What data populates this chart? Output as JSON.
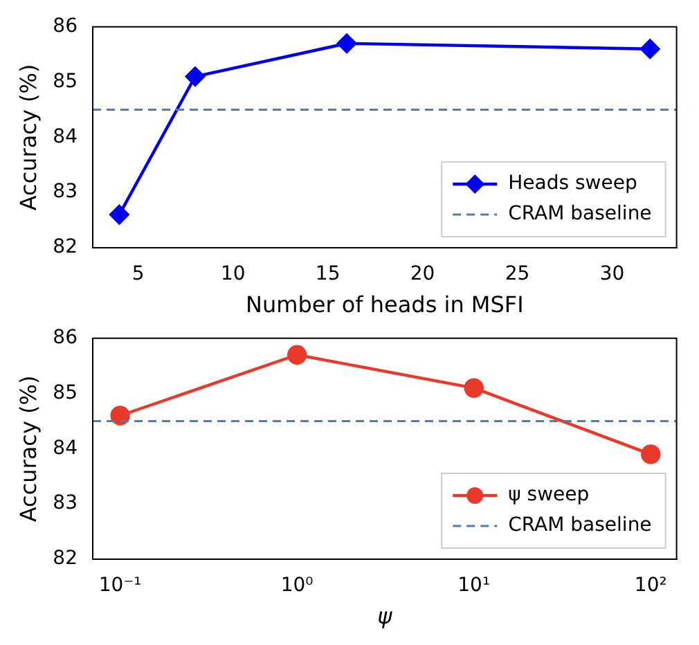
{
  "chart_data": [
    {
      "type": "line",
      "xlabel": "Number of heads in MSFI",
      "ylabel": "Accuracy (%)",
      "x": [
        4,
        8,
        16,
        32
      ],
      "series": [
        {
          "name": "Heads sweep",
          "color": "#0000ee",
          "values": [
            82.6,
            85.1,
            85.7,
            85.6
          ]
        }
      ],
      "xlim": [
        2.6,
        33.4
      ],
      "xticks": [
        5,
        10,
        15,
        20,
        25,
        30
      ],
      "ylim": [
        82,
        86
      ],
      "yticks": [
        82,
        83,
        84,
        85,
        86
      ],
      "ref_lines": [
        {
          "axis": "y",
          "value": 84.5,
          "label": "CRAM baseline",
          "color": "#4a7fb5",
          "line_style": "dashed"
        }
      ],
      "marker": "diamond",
      "grid": false,
      "legend": "bottom right"
    },
    {
      "type": "line",
      "xlabel": "ψ",
      "ylabel": "Accuracy (%)",
      "x": [
        0.1,
        1,
        10,
        100
      ],
      "series": [
        {
          "name": "ψ sweep",
          "color": "#e8392a",
          "values": [
            84.6,
            85.7,
            85.1,
            83.9
          ]
        }
      ],
      "xlim": [
        0.07,
        140
      ],
      "xticks": [
        {
          "value": 0.1,
          "label": "10⁻¹"
        },
        {
          "value": 1,
          "label": "10⁰"
        },
        {
          "value": 10,
          "label": "10¹"
        },
        {
          "value": 100,
          "label": "10²"
        }
      ],
      "ylim": [
        82,
        86
      ],
      "yticks": [
        82,
        83,
        84,
        85,
        86
      ],
      "log": "x",
      "ref_lines": [
        {
          "axis": "y",
          "value": 84.5,
          "label": "CRAM baseline",
          "color": "#4a7fb5",
          "line_style": "dashed"
        }
      ],
      "marker": "circle",
      "grid": false,
      "legend": "bottom right"
    }
  ]
}
